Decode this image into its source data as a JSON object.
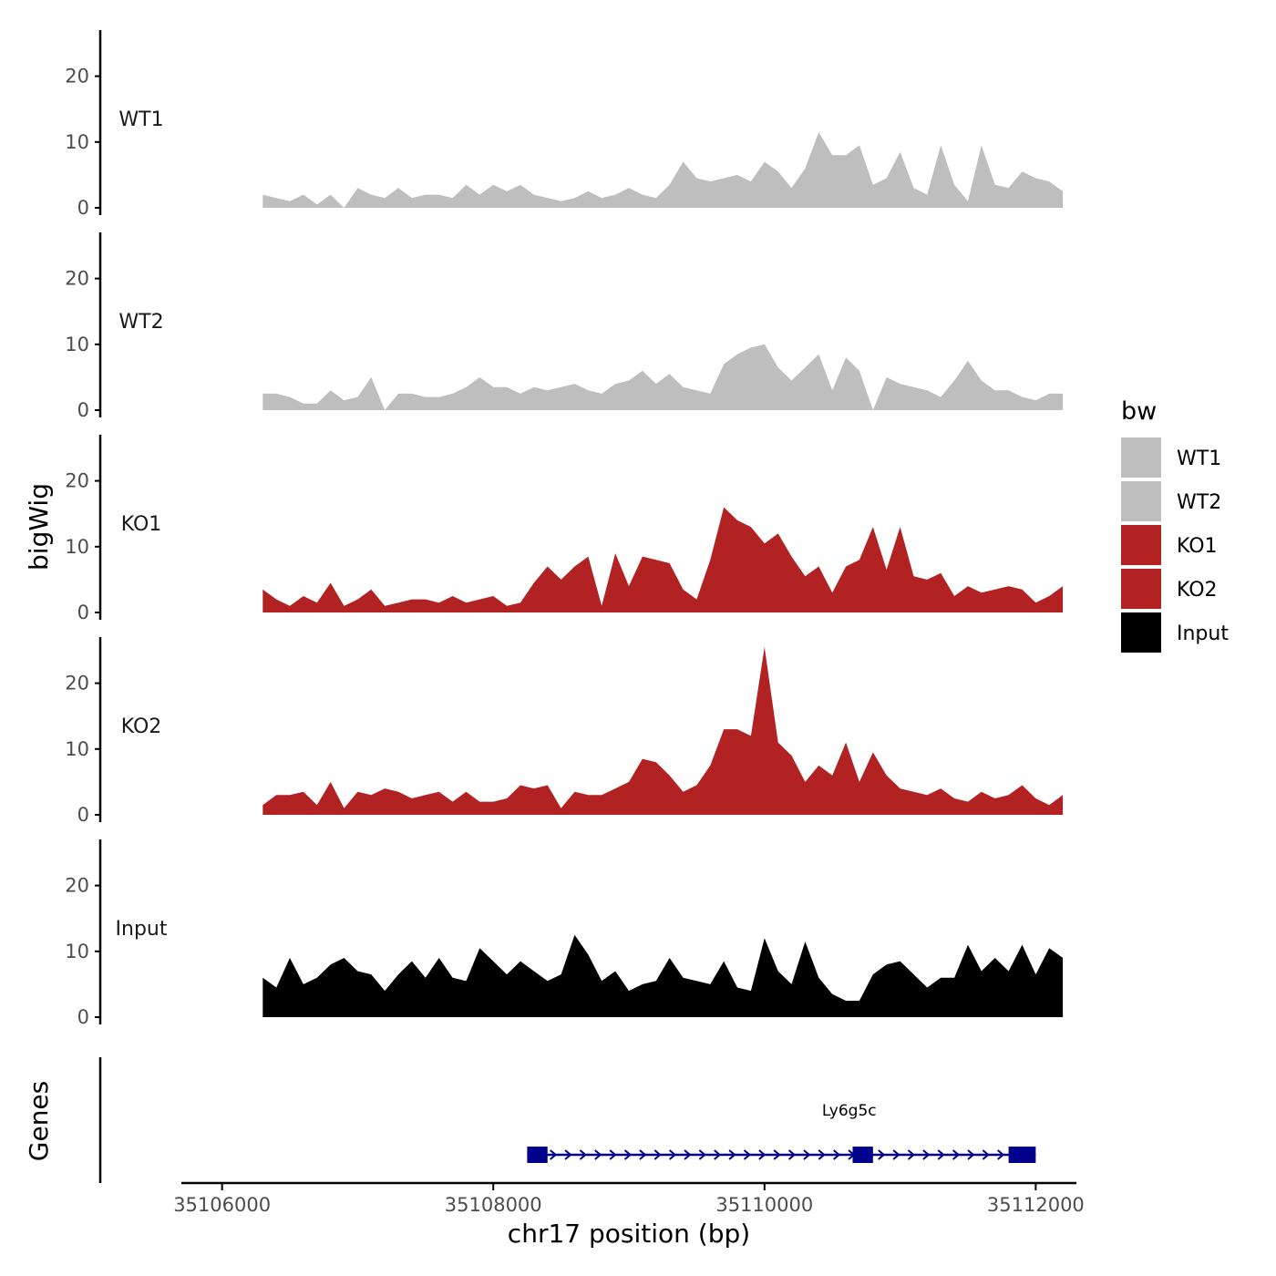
{
  "chart_data": {
    "type": "area",
    "chromosome": "chr17",
    "xlabel": "chr17 position (bp)",
    "ylabel": "bigWig",
    "gene_track_label": "Genes",
    "xlim": [
      35105700,
      35112300
    ],
    "x_ticks": [
      35106000,
      35108000,
      35110000,
      35112000
    ],
    "x_tick_labels": [
      "35106000",
      "35108000",
      "35110000",
      "35112000"
    ],
    "ylim": [
      0,
      27
    ],
    "y_ticks": [
      0,
      10,
      20
    ],
    "y_tick_labels": [
      "0",
      "10",
      "20"
    ],
    "x_step": 100,
    "legend": {
      "title": "bw",
      "entries": [
        {
          "label": "WT1",
          "color": "#bebebe"
        },
        {
          "label": "WT2",
          "color": "#bebebe"
        },
        {
          "label": "KO1",
          "color": "#b22222"
        },
        {
          "label": "KO2",
          "color": "#b22222"
        },
        {
          "label": "Input",
          "color": "#000000"
        }
      ]
    },
    "series": [
      {
        "name": "WT1",
        "color": "#bebebe",
        "x_start": 35106300,
        "values": [
          2,
          1.5,
          1,
          2,
          0.5,
          2,
          0,
          3,
          2,
          1.5,
          3,
          1.5,
          2,
          2,
          1.5,
          3.5,
          2,
          3.5,
          2.5,
          3.5,
          2,
          1.5,
          1,
          1.5,
          2.5,
          1.5,
          2,
          3,
          2,
          1.5,
          3.5,
          7,
          4.5,
          4,
          4.5,
          5,
          4,
          7,
          5.5,
          3,
          6,
          11.5,
          8,
          8,
          9.5,
          3.5,
          4.5,
          8.5,
          3,
          2,
          9.5,
          3.5,
          1,
          9.5,
          3.5,
          3,
          5.5,
          4.5,
          4,
          2.5
        ]
      },
      {
        "name": "WT2",
        "color": "#bebebe",
        "x_start": 35106300,
        "values": [
          2.5,
          2.5,
          2,
          1,
          1,
          3,
          1.5,
          2,
          5,
          0,
          2.5,
          2.5,
          2,
          2,
          2.5,
          3.5,
          5,
          3.5,
          3.5,
          2.5,
          3.5,
          3,
          3.5,
          4,
          3,
          2.5,
          4,
          4.5,
          6,
          4,
          5.5,
          3.5,
          3,
          2.5,
          7,
          8.5,
          9.5,
          10,
          6.5,
          4.5,
          6.5,
          8.5,
          3,
          8,
          6,
          0,
          5,
          4,
          3.5,
          3,
          2,
          4.5,
          7.5,
          4.5,
          3,
          3,
          2,
          1.5,
          2.5,
          2.5
        ]
      },
      {
        "name": "KO1",
        "color": "#b22222",
        "x_start": 35106300,
        "values": [
          3.5,
          2,
          1,
          2.5,
          1.5,
          4.5,
          1,
          2,
          3.5,
          1,
          1.5,
          2,
          2,
          1.5,
          2.5,
          1.5,
          2,
          2.5,
          1,
          1.5,
          4.5,
          7,
          5,
          7,
          8.5,
          1,
          9,
          4,
          8.5,
          8,
          7.5,
          3.5,
          2,
          8,
          16,
          14,
          13,
          10.5,
          12,
          8.5,
          5.5,
          7,
          3,
          7,
          8,
          13,
          6.5,
          13,
          5.5,
          5,
          6,
          2.5,
          4,
          3,
          3.5,
          4,
          3.5,
          1.5,
          2.5,
          4
        ]
      },
      {
        "name": "KO2",
        "color": "#b22222",
        "x_start": 35106300,
        "values": [
          1.5,
          3,
          3,
          3.5,
          1.5,
          5,
          1,
          3.5,
          3,
          4,
          3.5,
          2.5,
          3,
          3.5,
          2,
          3.5,
          2,
          2,
          2.5,
          4.5,
          4,
          4.5,
          1,
          3.5,
          3,
          3,
          4,
          5,
          8.5,
          8,
          6,
          3.5,
          4.5,
          7.5,
          13,
          13,
          12,
          25.5,
          11,
          9,
          5,
          7.5,
          6,
          11,
          5,
          9.5,
          6,
          4,
          3.5,
          3,
          4,
          2.5,
          2,
          3.5,
          2.5,
          3,
          4.5,
          2.5,
          1.5,
          3
        ]
      },
      {
        "name": "Input",
        "color": "#000000",
        "x_start": 35106300,
        "values": [
          6,
          4.5,
          9,
          5,
          6,
          8,
          9,
          7,
          6.5,
          4,
          6.5,
          8.5,
          6,
          9,
          6,
          5.5,
          10.5,
          8.5,
          6.5,
          8.5,
          7,
          5.5,
          6.5,
          12.5,
          9.5,
          5.5,
          7,
          4,
          5,
          5.5,
          9,
          6,
          5.5,
          5,
          8.5,
          4.5,
          4,
          12,
          7,
          5,
          11.5,
          6,
          3.5,
          2.5,
          2.5,
          6.5,
          8,
          8.5,
          6.5,
          4.5,
          6,
          6,
          11,
          7,
          9,
          7,
          11,
          6.5,
          10.5,
          9
        ]
      }
    ],
    "genes": [
      {
        "name": "Ly6g5c",
        "start": 35108250,
        "end": 35112000,
        "strand": "+",
        "color": "#00008b",
        "exons": [
          [
            35108250,
            35108400
          ],
          [
            35110650,
            35110800
          ],
          [
            35111800,
            35112000
          ]
        ]
      }
    ]
  }
}
